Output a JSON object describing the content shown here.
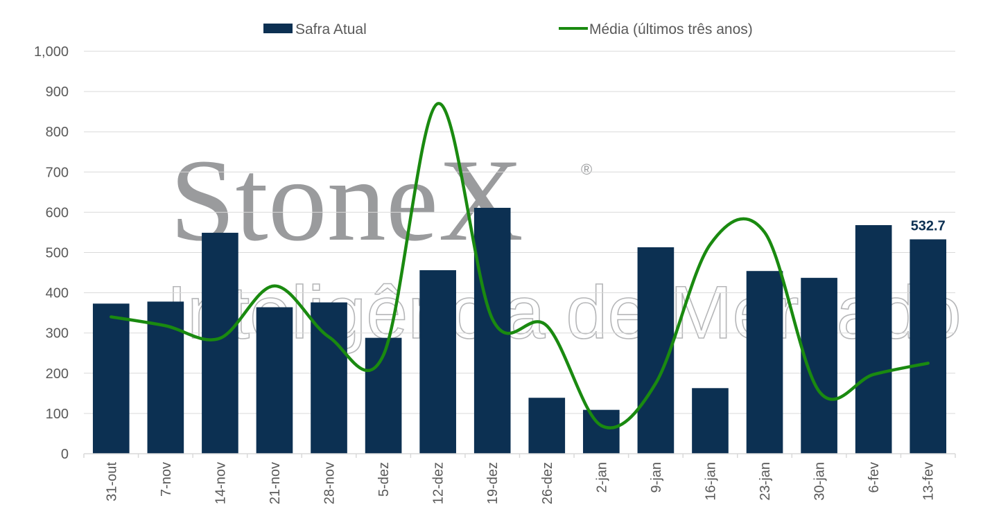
{
  "chart_data": {
    "type": "bar",
    "categories": [
      "31-out",
      "7-nov",
      "14-nov",
      "21-nov",
      "28-nov",
      "5-dez",
      "12-dez",
      "19-dez",
      "26-dez",
      "2-jan",
      "9-jan",
      "16-jan",
      "23-jan",
      "30-jan",
      "6-fev",
      "13-fev"
    ],
    "series": [
      {
        "name": "Safra Atual",
        "type": "bar",
        "color": "#0c3052",
        "values": [
          373,
          378,
          549,
          364,
          376,
          288,
          456,
          611,
          139,
          109,
          513,
          163,
          454,
          437,
          568,
          532.7
        ]
      },
      {
        "name": "Média (últimos três anos)",
        "type": "line",
        "smooth": true,
        "color": "#1a8a10",
        "values": [
          340,
          318,
          287,
          417,
          290,
          245,
          870,
          335,
          318,
          70,
          175,
          520,
          550,
          155,
          197,
          225
        ]
      }
    ],
    "ylim": [
      0,
      1000
    ],
    "yticks": [
      "0",
      "100",
      "200",
      "300",
      "400",
      "500",
      "600",
      "700",
      "800",
      "900",
      "1,000"
    ],
    "data_labels": [
      {
        "series": "Safra Atual",
        "category": "13-fev",
        "text": "532.7"
      }
    ],
    "legend_position": "top",
    "grid": "horizontal"
  },
  "watermark": {
    "brand": "StoneX",
    "registered": "®",
    "subtitle": "Inteligência de Mercado"
  },
  "colors": {
    "bar": "#0c3052",
    "line": "#1a8a10",
    "grid": "#d9d9d9",
    "text": "#595959"
  }
}
